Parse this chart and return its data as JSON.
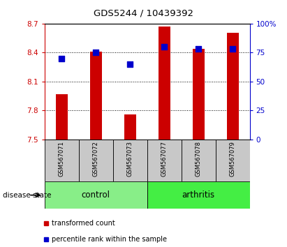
{
  "title": "GDS5244 / 10439392",
  "samples": [
    "GSM567071",
    "GSM567072",
    "GSM567073",
    "GSM567077",
    "GSM567078",
    "GSM567079"
  ],
  "transformed_count": [
    7.97,
    8.41,
    7.76,
    8.67,
    8.44,
    8.6
  ],
  "percentile_rank": [
    70,
    75,
    65,
    80,
    78,
    78
  ],
  "ylim_left": [
    7.5,
    8.7
  ],
  "ylim_right": [
    0,
    100
  ],
  "yticks_left": [
    7.5,
    7.8,
    8.1,
    8.4,
    8.7
  ],
  "ytick_labels_left": [
    "7.5",
    "7.8",
    "8.1",
    "8.4",
    "8.7"
  ],
  "yticks_right": [
    0,
    25,
    50,
    75,
    100
  ],
  "ytick_labels_right": [
    "0",
    "25",
    "50",
    "75",
    "100%"
  ],
  "bar_color": "#cc0000",
  "dot_color": "#0000cc",
  "bar_bottom": 7.5,
  "groups": [
    {
      "label": "control",
      "indices": [
        0,
        1,
        2
      ],
      "color": "#88ee88"
    },
    {
      "label": "arthritis",
      "indices": [
        3,
        4,
        5
      ],
      "color": "#44ee44"
    }
  ],
  "disease_state_label": "disease state",
  "legend_items": [
    {
      "label": "transformed count",
      "color": "#cc0000"
    },
    {
      "label": "percentile rank within the sample",
      "color": "#0000cc"
    }
  ],
  "bar_width": 0.35,
  "dot_size": 35,
  "sample_box_color": "#c8c8c8",
  "grid_color": "black"
}
